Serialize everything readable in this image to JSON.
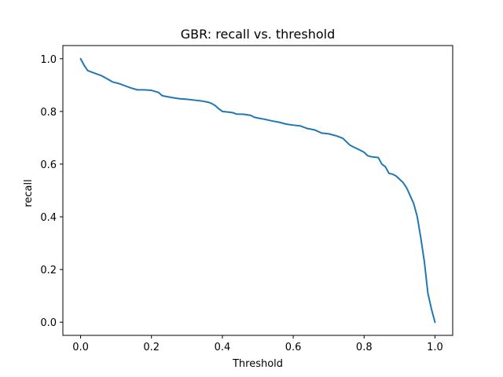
{
  "chart_data": {
    "type": "line",
    "title": "GBR: recall vs. threshold",
    "xlabel": "Threshold",
    "ylabel": "recall",
    "xlim": [
      -0.05,
      1.05
    ],
    "ylim": [
      -0.05,
      1.05
    ],
    "x_ticks": [
      0.0,
      0.2,
      0.4,
      0.6,
      0.8,
      1.0
    ],
    "y_ticks": [
      0.0,
      0.2,
      0.4,
      0.6,
      0.8,
      1.0
    ],
    "x_tick_labels": [
      "0.0",
      "0.2",
      "0.4",
      "0.6",
      "0.8",
      "1.0"
    ],
    "y_tick_labels": [
      "0.0",
      "0.2",
      "0.4",
      "0.6",
      "0.8",
      "1.0"
    ],
    "grid": false,
    "line_color": "#1f77b4",
    "series": [
      {
        "x": [
          0.0,
          0.01,
          0.02,
          0.03,
          0.05,
          0.06,
          0.08,
          0.09,
          0.11,
          0.13,
          0.14,
          0.16,
          0.18,
          0.2,
          0.22,
          0.23,
          0.24,
          0.26,
          0.28,
          0.3,
          0.32,
          0.34,
          0.36,
          0.37,
          0.38,
          0.39,
          0.4,
          0.42,
          0.43,
          0.44,
          0.46,
          0.48,
          0.49,
          0.5,
          0.52,
          0.54,
          0.56,
          0.58,
          0.6,
          0.62,
          0.64,
          0.66,
          0.68,
          0.7,
          0.72,
          0.74,
          0.76,
          0.77,
          0.79,
          0.8,
          0.81,
          0.82,
          0.84,
          0.85,
          0.86,
          0.87,
          0.88,
          0.89,
          0.9,
          0.91,
          0.92,
          0.93,
          0.94,
          0.95,
          0.96,
          0.97,
          0.98,
          0.99,
          1.0
        ],
        "y": [
          1.0,
          0.975,
          0.955,
          0.95,
          0.94,
          0.935,
          0.92,
          0.912,
          0.905,
          0.895,
          0.89,
          0.882,
          0.882,
          0.88,
          0.872,
          0.86,
          0.857,
          0.852,
          0.848,
          0.846,
          0.843,
          0.84,
          0.835,
          0.83,
          0.822,
          0.81,
          0.8,
          0.797,
          0.795,
          0.79,
          0.789,
          0.785,
          0.778,
          0.775,
          0.77,
          0.764,
          0.759,
          0.752,
          0.748,
          0.745,
          0.735,
          0.73,
          0.718,
          0.715,
          0.708,
          0.698,
          0.672,
          0.665,
          0.652,
          0.645,
          0.632,
          0.628,
          0.625,
          0.6,
          0.59,
          0.565,
          0.562,
          0.555,
          0.543,
          0.53,
          0.51,
          0.48,
          0.45,
          0.4,
          0.32,
          0.23,
          0.11,
          0.05,
          0.0
        ]
      }
    ]
  }
}
